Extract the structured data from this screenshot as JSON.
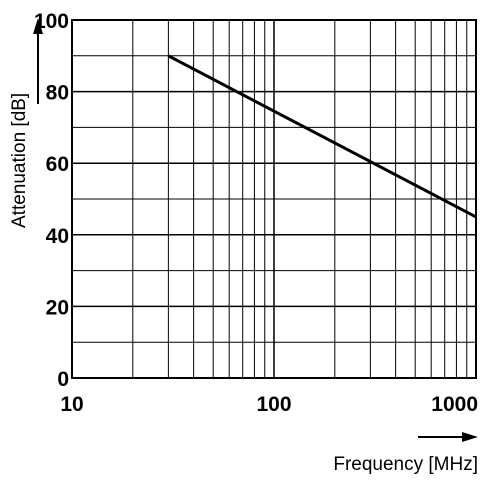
{
  "chart_data": {
    "type": "line",
    "title": "",
    "xlabel": "Frequency [MHz]",
    "ylabel": "Attenuation [dB]",
    "x_scale": "log",
    "xlim": [
      10,
      1000
    ],
    "ylim": [
      0,
      100
    ],
    "x_ticks": [
      10,
      100,
      1000
    ],
    "x_tick_labels": [
      "10",
      "100",
      "1000"
    ],
    "y_ticks": [
      0,
      20,
      40,
      60,
      80,
      100
    ],
    "y_tick_labels": [
      "0",
      "20",
      "40",
      "60",
      "80",
      "100"
    ],
    "grid": true,
    "series": [
      {
        "x": [
          30,
          1000
        ],
        "y": [
          90,
          45
        ]
      }
    ]
  },
  "colors": {
    "line": "#000000",
    "grid": "#000000",
    "background": "#ffffff"
  }
}
